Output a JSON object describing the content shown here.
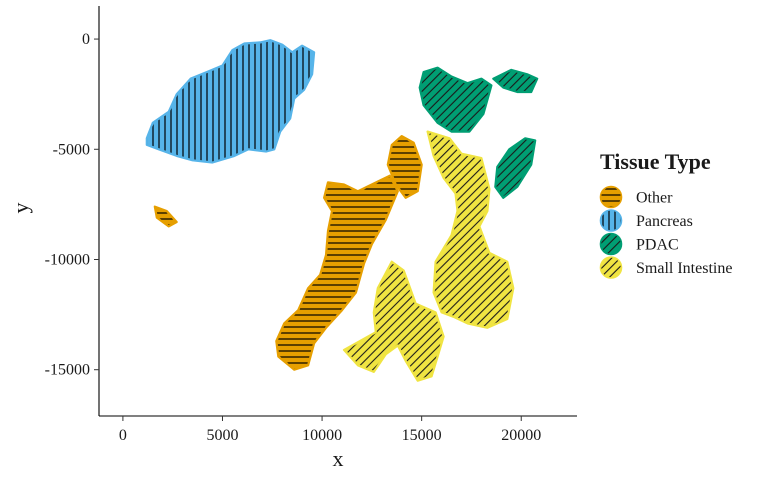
{
  "chart_data": {
    "type": "scatter",
    "title": "",
    "xlabel": "x",
    "ylabel": "y",
    "xlim": [
      -1200,
      22800
    ],
    "ylim": [
      -17100,
      1500
    ],
    "x_ticks": [
      0,
      5000,
      10000,
      15000,
      20000
    ],
    "y_ticks": [
      0,
      -5000,
      -10000,
      -15000
    ],
    "x_tick_labels": [
      "0",
      "5000",
      "10000",
      "15000",
      "20000"
    ],
    "y_tick_labels": [
      "0",
      "-5000",
      "-10000",
      "-15000"
    ],
    "grid": false,
    "legend": {
      "title": "Tissue Type",
      "position": "right",
      "entries": [
        "Other",
        "Pancreas",
        "PDAC",
        "Small Intestine"
      ]
    },
    "series": [
      {
        "name": "Pancreas",
        "color": "#56B4E9",
        "pattern": "vertical-stripes",
        "regions": [
          [
            [
              1200,
              -4500
            ],
            [
              1500,
              -3800
            ],
            [
              2300,
              -3300
            ],
            [
              2700,
              -2500
            ],
            [
              3400,
              -1800
            ],
            [
              4200,
              -1500
            ],
            [
              5000,
              -1200
            ],
            [
              5500,
              -500
            ],
            [
              6100,
              -200
            ],
            [
              6900,
              -150
            ],
            [
              7400,
              -50
            ],
            [
              8000,
              -250
            ],
            [
              8500,
              -600
            ],
            [
              9000,
              -300
            ],
            [
              9600,
              -600
            ],
            [
              9500,
              -1600
            ],
            [
              9100,
              -2300
            ],
            [
              8600,
              -2700
            ],
            [
              8400,
              -3600
            ],
            [
              7900,
              -4200
            ],
            [
              7600,
              -5000
            ],
            [
              7200,
              -5100
            ],
            [
              6300,
              -5000
            ],
            [
              5600,
              -5300
            ],
            [
              4500,
              -5600
            ],
            [
              3500,
              -5500
            ],
            [
              2700,
              -5300
            ],
            [
              1800,
              -5000
            ],
            [
              1200,
              -4800
            ]
          ]
        ]
      },
      {
        "name": "PDAC",
        "color": "#009E73",
        "pattern": "diagonal-stripes",
        "regions": [
          [
            [
              15100,
              -1500
            ],
            [
              15800,
              -1300
            ],
            [
              16500,
              -1700
            ],
            [
              17300,
              -2000
            ],
            [
              18000,
              -1800
            ],
            [
              18500,
              -2100
            ],
            [
              18100,
              -3400
            ],
            [
              17400,
              -4200
            ],
            [
              16500,
              -4200
            ],
            [
              15800,
              -3800
            ],
            [
              15100,
              -3000
            ],
            [
              14900,
              -2200
            ]
          ],
          [
            [
              18600,
              -1800
            ],
            [
              19500,
              -1400
            ],
            [
              20300,
              -1600
            ],
            [
              20800,
              -1800
            ],
            [
              20500,
              -2400
            ],
            [
              19800,
              -2400
            ],
            [
              19100,
              -2200
            ]
          ],
          [
            [
              19400,
              -5000
            ],
            [
              20200,
              -4500
            ],
            [
              20700,
              -4600
            ],
            [
              20500,
              -5700
            ],
            [
              19800,
              -6700
            ],
            [
              19100,
              -7200
            ],
            [
              18700,
              -6700
            ],
            [
              18800,
              -5800
            ]
          ]
        ]
      },
      {
        "name": "Other",
        "color": "#E69F00",
        "pattern": "horizontal-stripes",
        "regions": [
          [
            [
              14000,
              -4400
            ],
            [
              14600,
              -4700
            ],
            [
              15000,
              -5700
            ],
            [
              14800,
              -6900
            ],
            [
              14200,
              -7200
            ],
            [
              13700,
              -6600
            ],
            [
              13300,
              -5700
            ],
            [
              13500,
              -4800
            ]
          ],
          [
            [
              10300,
              -6500
            ],
            [
              11100,
              -6600
            ],
            [
              11800,
              -6900
            ],
            [
              13400,
              -6200
            ],
            [
              13800,
              -6900
            ],
            [
              13200,
              -8200
            ],
            [
              12500,
              -9300
            ],
            [
              12100,
              -10200
            ],
            [
              11700,
              -11500
            ],
            [
              11000,
              -12300
            ],
            [
              10200,
              -13100
            ],
            [
              9600,
              -13800
            ],
            [
              9300,
              -14800
            ],
            [
              8600,
              -15000
            ],
            [
              7800,
              -14400
            ],
            [
              7700,
              -13700
            ],
            [
              8100,
              -12900
            ],
            [
              8800,
              -12300
            ],
            [
              9300,
              -11300
            ],
            [
              9900,
              -10700
            ],
            [
              10200,
              -9800
            ],
            [
              10300,
              -8700
            ],
            [
              10500,
              -7800
            ],
            [
              10100,
              -7200
            ]
          ],
          [
            [
              1600,
              -7600
            ],
            [
              2200,
              -7800
            ],
            [
              2700,
              -8300
            ],
            [
              2300,
              -8500
            ],
            [
              1700,
              -8100
            ]
          ]
        ]
      },
      {
        "name": "Small Intestine",
        "color": "#F0E442",
        "pattern": "diagonal-stripes",
        "regions": [
          [
            [
              15300,
              -4200
            ],
            [
              16400,
              -4500
            ],
            [
              17000,
              -5200
            ],
            [
              18000,
              -5400
            ],
            [
              18400,
              -6800
            ],
            [
              18300,
              -7800
            ],
            [
              17900,
              -8500
            ],
            [
              18400,
              -9700
            ],
            [
              19300,
              -10100
            ],
            [
              19600,
              -11300
            ],
            [
              19300,
              -12700
            ],
            [
              18300,
              -13100
            ],
            [
              17300,
              -12900
            ],
            [
              16600,
              -12600
            ],
            [
              16000,
              -12400
            ],
            [
              15600,
              -11500
            ],
            [
              15700,
              -10100
            ],
            [
              16500,
              -8900
            ],
            [
              16800,
              -7800
            ],
            [
              16700,
              -7000
            ],
            [
              16100,
              -6300
            ],
            [
              15600,
              -5300
            ]
          ],
          [
            [
              12800,
              -11300
            ],
            [
              13500,
              -10100
            ],
            [
              14100,
              -10500
            ],
            [
              14700,
              -12000
            ],
            [
              15700,
              -12400
            ],
            [
              16100,
              -13500
            ],
            [
              15800,
              -14400
            ],
            [
              15500,
              -15300
            ],
            [
              14800,
              -15500
            ],
            [
              14200,
              -14600
            ],
            [
              13800,
              -13900
            ],
            [
              13200,
              -14300
            ],
            [
              12600,
              -15100
            ],
            [
              11800,
              -14800
            ],
            [
              11100,
              -14100
            ],
            [
              11900,
              -13700
            ],
            [
              12700,
              -13300
            ],
            [
              12600,
              -12400
            ]
          ]
        ]
      }
    ]
  }
}
